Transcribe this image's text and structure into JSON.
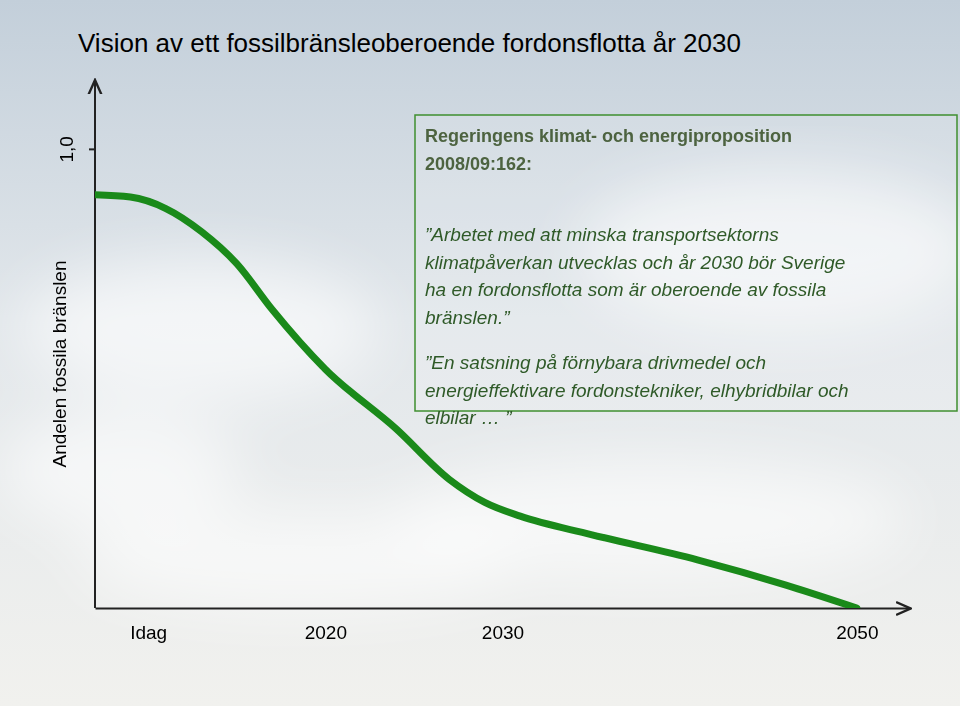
{
  "chart_data": {
    "type": "line",
    "title": "Vision av ett fossilbränsleoberoende fordonsflotta år 2030",
    "y_label": "Andelen fossila bränslen",
    "x": [
      2007,
      2009,
      2011,
      2013,
      2015,
      2017,
      2020,
      2024,
      2027,
      2029,
      2031,
      2035,
      2041,
      2046,
      2050
    ],
    "values": [
      0.9,
      0.895,
      0.87,
      0.82,
      0.75,
      0.65,
      0.52,
      0.39,
      0.28,
      0.23,
      0.2,
      0.16,
      0.105,
      0.05,
      0
    ],
    "color": "#1a8a1a",
    "xlim": [
      2007,
      2053
    ],
    "xticks": [
      {
        "value": 2010,
        "label": "Idag"
      },
      2020,
      2030,
      2050
    ],
    "ylim": [
      0,
      1.15
    ],
    "yticks": [
      {
        "value": 1,
        "label": "1,0"
      }
    ],
    "grid": false,
    "annotation": {
      "heading": [
        "Regeringens klimat- och energiproposition",
        "2008/09:162:"
      ],
      "quotes": [
        [
          "”Arbetet med att minska transportsektorns",
          "klimatpåverkan utvecklas och år 2030 bör Sverige",
          "ha en fordonsflotta som är oberoende av fossila",
          "bränslen.”"
        ],
        [
          "”En satsning på förnybara drivmedel och",
          "energieffektivare fordonstekniker, elhybridbilar och",
          "elbilar … ”"
        ]
      ]
    }
  }
}
